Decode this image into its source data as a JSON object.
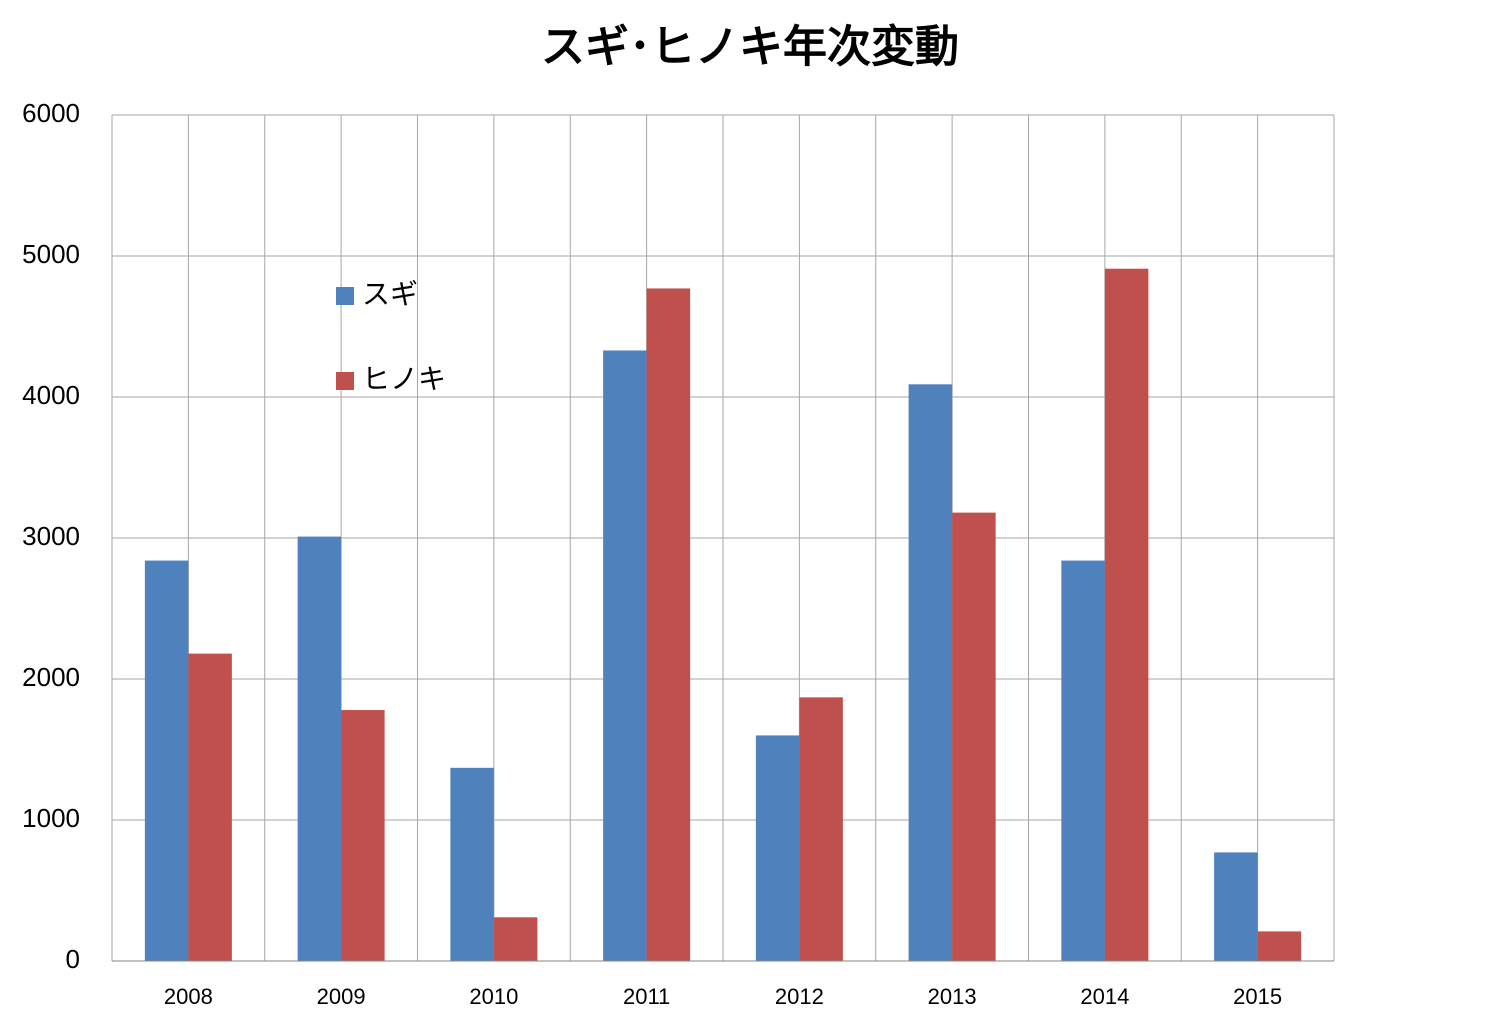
{
  "chart_data": {
    "type": "bar",
    "title": "スギ･ヒノキ年次変動",
    "categories": [
      "2008",
      "2009",
      "2010",
      "2011",
      "2012",
      "2013",
      "2014",
      "2015"
    ],
    "series": [
      {
        "name": "スギ",
        "color": "#4f81bd",
        "values": [
          2840,
          3010,
          1370,
          4330,
          1600,
          4090,
          2840,
          770
        ]
      },
      {
        "name": "ヒノキ",
        "color": "#c0504d",
        "values": [
          2180,
          1780,
          310,
          4770,
          1870,
          3180,
          4910,
          210
        ]
      }
    ],
    "ylim": [
      0,
      6000
    ],
    "yticks": [
      0,
      1000,
      2000,
      3000,
      4000,
      5000,
      6000
    ],
    "grid": true
  }
}
